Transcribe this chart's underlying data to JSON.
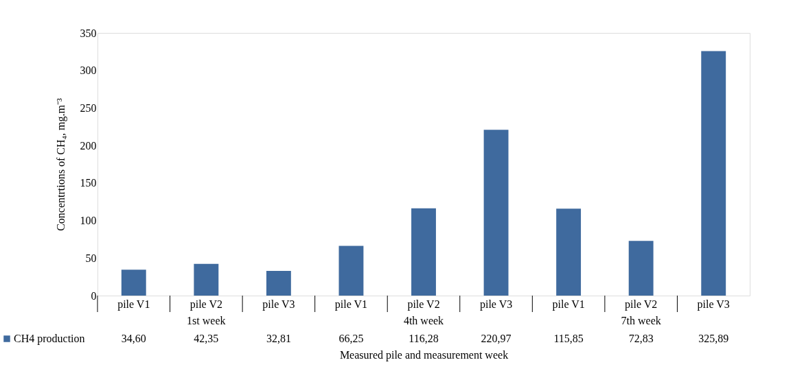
{
  "chart_data": {
    "type": "bar",
    "categories": [
      "pile V1",
      "pile V2",
      "pile V3",
      "pile V1",
      "pile V2",
      "pile V3",
      "pile V1",
      "pile V2",
      "pile V3"
    ],
    "series": [
      {
        "name": "CH4 production",
        "color": "#3f6a9e",
        "values": [
          34.6,
          42.35,
          32.81,
          66.25,
          116.28,
          220.97,
          115.85,
          72.83,
          325.89
        ],
        "value_labels": [
          "34,60",
          "42,35",
          "32,81",
          "66,25",
          "116,28",
          "220,97",
          "115,85",
          "72,83",
          "325,89"
        ]
      }
    ],
    "data_labels": true,
    "annotations": [
      "1st week",
      "4th week",
      "7th week"
    ],
    "xlabel": "Measured pile and measurement week",
    "ylabel": "Concentrtions of CH₄, mg.m⁻³",
    "ylim": [
      0,
      350
    ],
    "yticks": [
      0,
      50,
      100,
      150,
      200,
      250,
      300,
      350
    ],
    "grid": false,
    "legend": "bottom left"
  }
}
